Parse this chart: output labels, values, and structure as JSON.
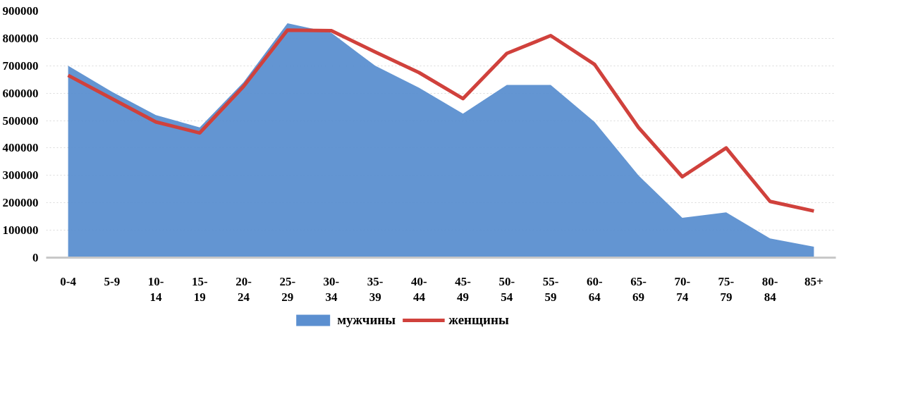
{
  "chart_data": {
    "type": "area",
    "categories": [
      "0-4",
      "5-9",
      "10-14",
      "15-19",
      "20-24",
      "25-29",
      "30-34",
      "35-39",
      "40-44",
      "45-49",
      "50-54",
      "55-59",
      "60-64",
      "65-69",
      "70-74",
      "75-79",
      "80-84",
      "85+"
    ],
    "series": [
      {
        "name": "мужчины",
        "color": "#5b8fd0",
        "values": [
          700000,
          605000,
          520000,
          475000,
          640000,
          855000,
          820000,
          700000,
          620000,
          525000,
          630000,
          630000,
          495000,
          300000,
          145000,
          165000,
          70000,
          40000
        ]
      },
      {
        "name": "женщины",
        "type": "line",
        "color": "#d0413c",
        "values": [
          665000,
          580000,
          495000,
          455000,
          625000,
          830000,
          828000,
          750000,
          675000,
          580000,
          745000,
          810000,
          705000,
          475000,
          295000,
          400000,
          205000,
          170000
        ]
      }
    ],
    "ylim": [
      0,
      900000
    ],
    "yticks": [
      0,
      100000,
      200000,
      300000,
      400000,
      500000,
      600000,
      700000,
      800000,
      900000
    ],
    "grid": "y",
    "legend": "bottom",
    "line_style": "solid",
    "marker": "none"
  }
}
